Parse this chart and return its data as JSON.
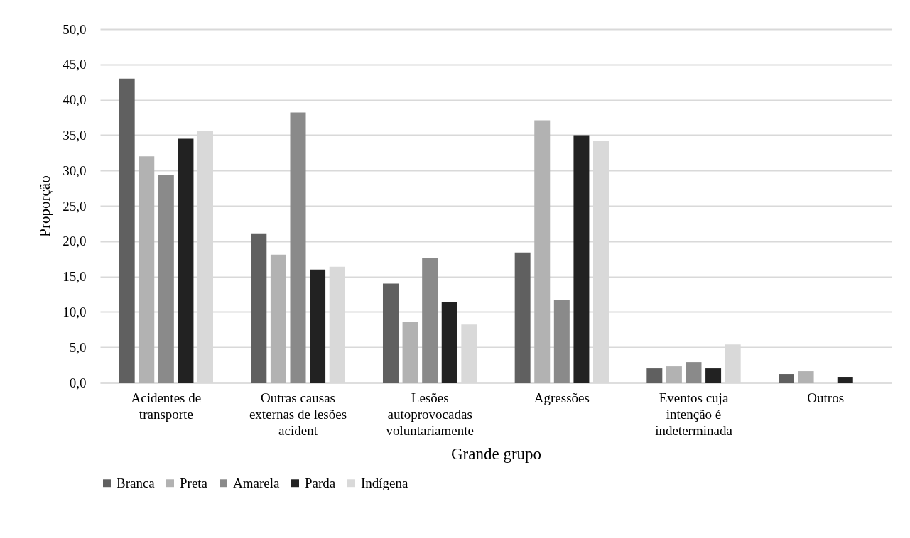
{
  "chart_data": {
    "type": "bar",
    "xlabel": "Grande grupo",
    "ylabel": "Proporção",
    "categories": [
      "Acidentes de transporte",
      "Outras causas externas de lesões acident",
      "Lesões autoprovocadas voluntariamente",
      "Agressões",
      "Eventos cuja intenção é indeterminada",
      "Outros"
    ],
    "series": [
      {
        "name": "Branca",
        "color": "#606060",
        "values": [
          43.0,
          21.1,
          14.0,
          18.4,
          2.0,
          1.2
        ]
      },
      {
        "name": "Preta",
        "color": "#b2b2b2",
        "values": [
          32.0,
          18.1,
          8.6,
          37.1,
          2.3,
          1.6
        ]
      },
      {
        "name": "Amarela",
        "color": "#8a8a8a",
        "values": [
          29.4,
          38.2,
          17.6,
          11.7,
          2.9,
          null
        ]
      },
      {
        "name": "Parda",
        "color": "#222222",
        "values": [
          34.5,
          16.0,
          11.4,
          35.0,
          2.0,
          0.8
        ]
      },
      {
        "name": "Indígena",
        "color": "#d9d9d9",
        "values": [
          35.6,
          16.4,
          8.2,
          34.2,
          5.4,
          null
        ]
      }
    ],
    "ylim": [
      0,
      50
    ],
    "yticks": [
      {
        "value": 0,
        "label": "0,0"
      },
      {
        "value": 5,
        "label": "5,0"
      },
      {
        "value": 10,
        "label": "10,0"
      },
      {
        "value": 15,
        "label": "15,0"
      },
      {
        "value": 20,
        "label": "20,0"
      },
      {
        "value": 25,
        "label": "25,0"
      },
      {
        "value": 30,
        "label": "30,0"
      },
      {
        "value": 35,
        "label": "35,0"
      },
      {
        "value": 40,
        "label": "40,0"
      },
      {
        "value": 45,
        "label": "45,0"
      },
      {
        "value": 50,
        "label": "50,0"
      }
    ],
    "grid": true,
    "legend": "bottom"
  }
}
